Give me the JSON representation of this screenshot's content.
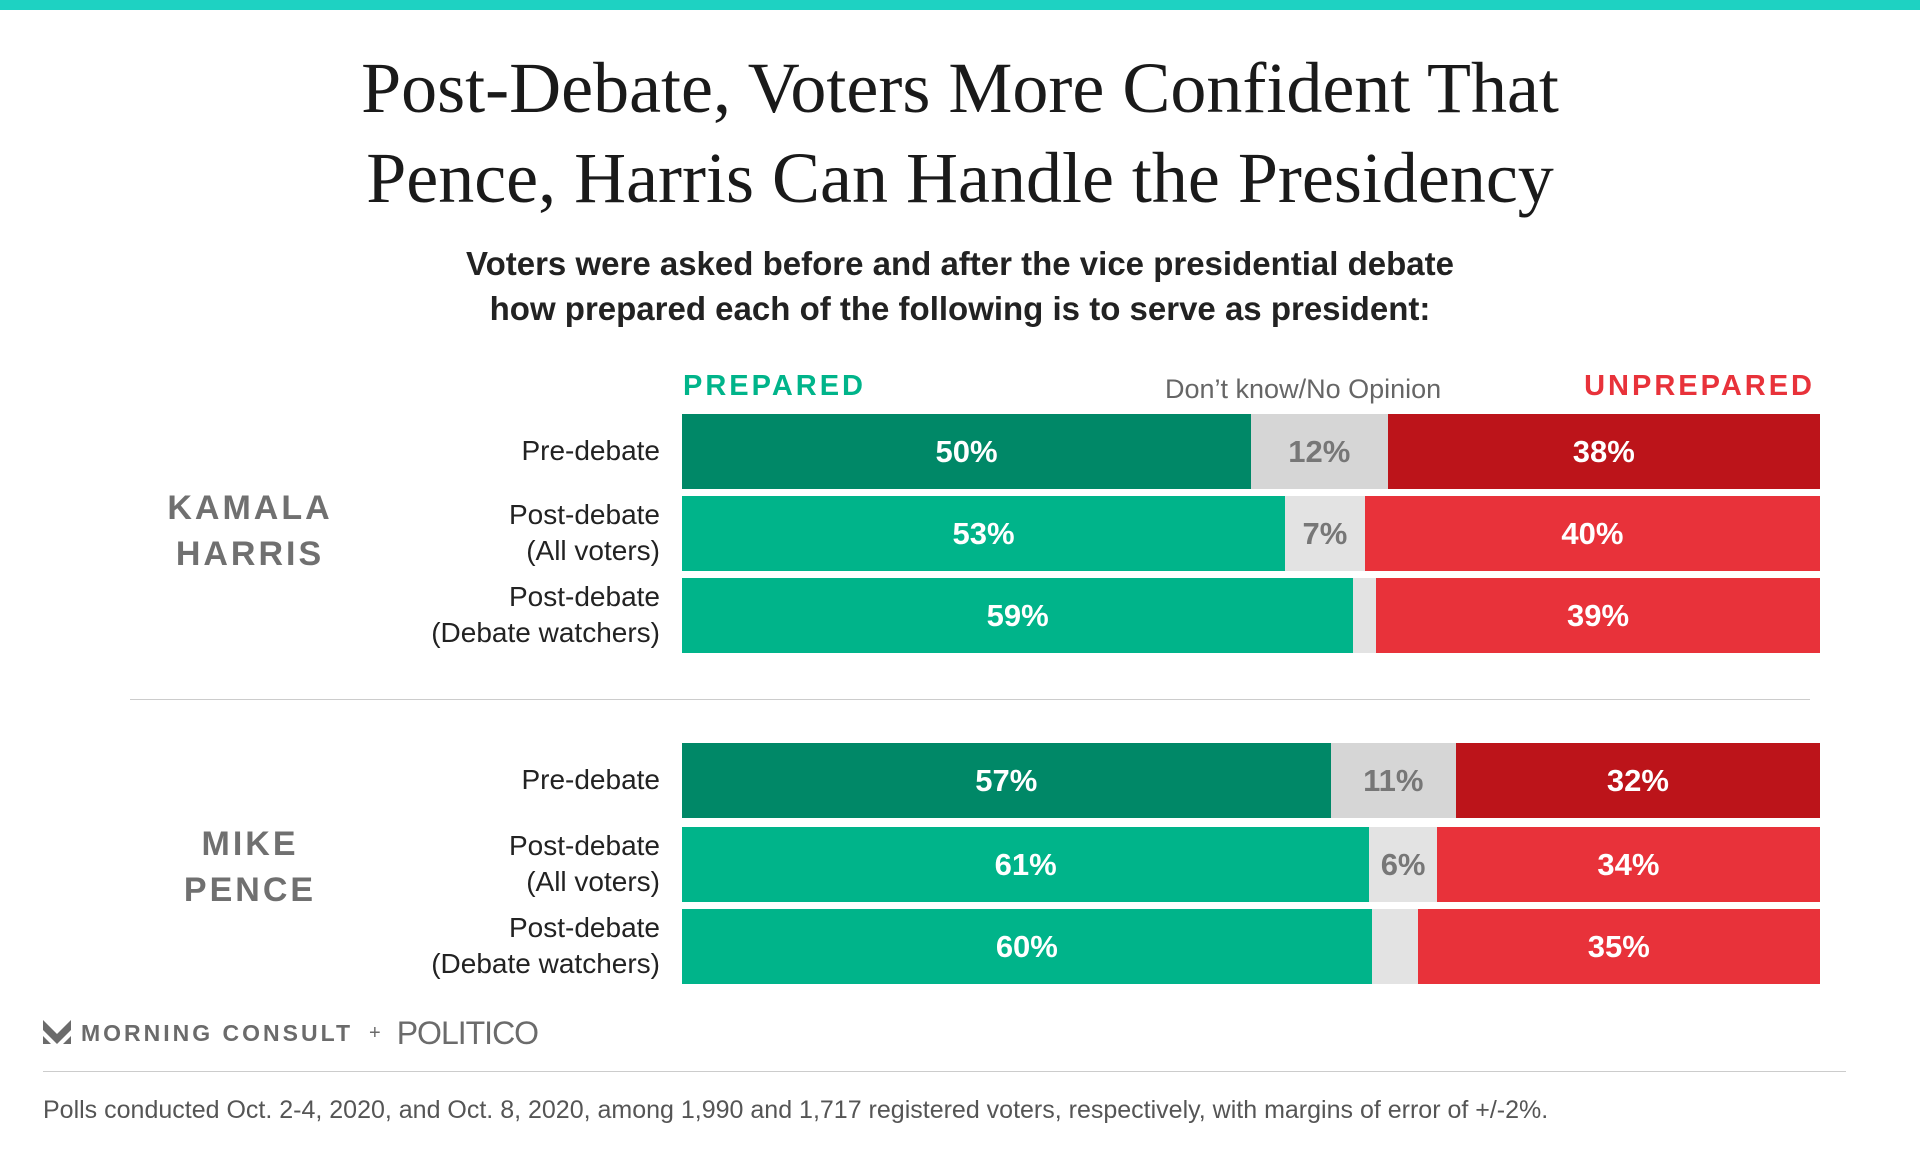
{
  "title_lines": [
    "Post-Debate, Voters More Confident That",
    "Pence, Harris Can Handle the Presidency"
  ],
  "subtitle_lines": [
    "Voters were asked before and after the vice presidential debate",
    "how prepared each of the following is to serve as president:"
  ],
  "colors": {
    "prepared_pre": "#008867",
    "prepared": "#00b48a",
    "unknown_pre": "#d6d6d6",
    "unknown": "#e3e3e3",
    "unprepared_pre": "#bc141a",
    "unprepared": "#e8323a",
    "accent": "#1ed2c2"
  },
  "chart_data": {
    "type": "bar",
    "orientation": "horizontal-stacked-100",
    "legend": [
      "PREPARED",
      "Don’t know/No Opinion",
      "UNPREPARED"
    ],
    "groups": [
      {
        "name_lines": [
          "KAMALA",
          "HARRIS"
        ],
        "rows": [
          {
            "label_lines": [
              "Pre-debate"
            ],
            "prepared": 50,
            "unknown": 12,
            "unprepared": 38,
            "unknown_label": "12%",
            "pre": true
          },
          {
            "label_lines": [
              "Post-debate",
              "(All voters)"
            ],
            "prepared": 53,
            "unknown": 7,
            "unprepared": 40,
            "unknown_label": "7%",
            "pre": false
          },
          {
            "label_lines": [
              "Post-debate",
              "(Debate watchers)"
            ],
            "prepared": 59,
            "unknown": 2,
            "unprepared": 39,
            "unknown_label": "",
            "pre": false
          }
        ]
      },
      {
        "name_lines": [
          "MIKE",
          "PENCE"
        ],
        "rows": [
          {
            "label_lines": [
              "Pre-debate"
            ],
            "prepared": 57,
            "unknown": 11,
            "unprepared": 32,
            "unknown_label": "11%",
            "pre": true
          },
          {
            "label_lines": [
              "Post-debate",
              "(All voters)"
            ],
            "prepared": 61,
            "unknown": 6,
            "unprepared": 34,
            "unknown_label": "6%",
            "pre": false
          },
          {
            "label_lines": [
              "Post-debate",
              "(Debate watchers)"
            ],
            "prepared": 60,
            "unknown": 4,
            "unprepared": 35,
            "unknown_label": "",
            "pre": false
          }
        ]
      }
    ]
  },
  "logo": {
    "morning_consult": "MORNING CONSULT",
    "plus": "+",
    "politico": "POLITICO"
  },
  "footer": "Polls conducted Oct. 2-4, 2020, and Oct. 8, 2020, among 1,990 and 1,717 registered voters, respectively, with margins of error of +/-2%."
}
